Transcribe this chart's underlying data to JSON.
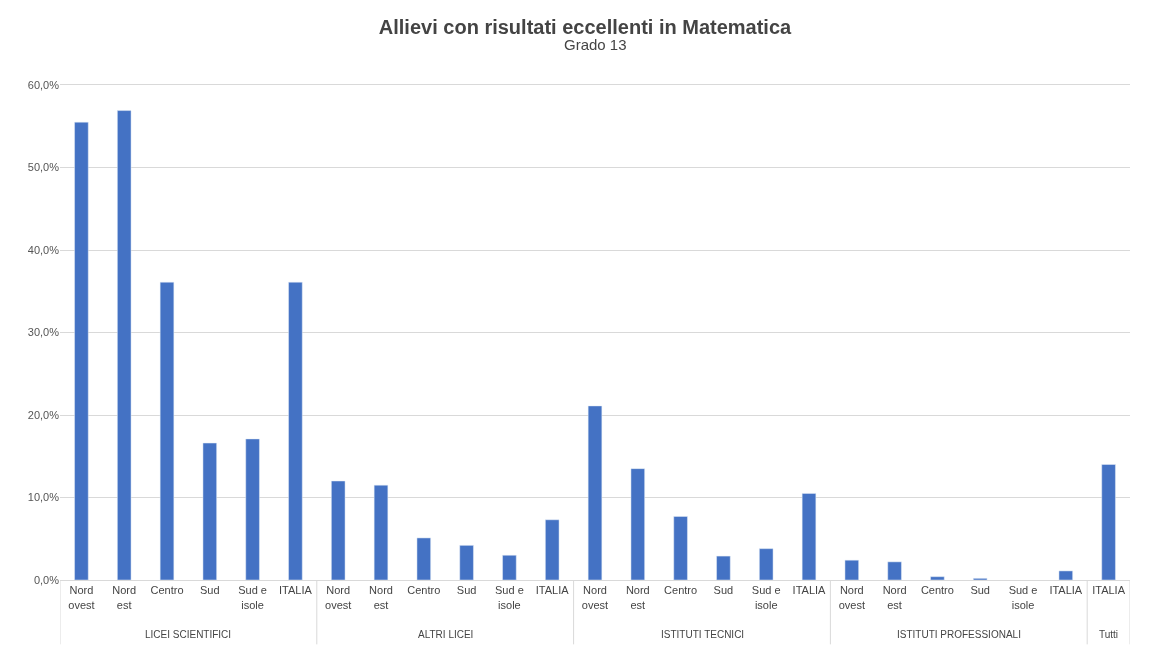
{
  "chart_data": {
    "type": "bar",
    "title": "Allievi con risultati eccellenti in Matematica",
    "subtitle": "Grado 13",
    "categories": [
      "Nord ovest",
      "Nord est",
      "Centro",
      "Sud",
      "Sud e isole",
      "ITALIA",
      "Nord ovest",
      "Nord est",
      "Centro",
      "Sud",
      "Sud e isole",
      "ITALIA",
      "Nord ovest",
      "Nord est",
      "Centro",
      "Sud",
      "Sud e isole",
      "ITALIA",
      "Nord ovest",
      "Nord est",
      "Centro",
      "Sud",
      "Sud e isole",
      "ITALIA",
      "ITALIA"
    ],
    "values": [
      55.5,
      56.9,
      36.1,
      16.6,
      17.1,
      36.1,
      12.0,
      11.5,
      5.1,
      4.2,
      3.0,
      7.3,
      21.1,
      13.5,
      7.7,
      2.9,
      3.8,
      10.5,
      2.4,
      2.2,
      0.4,
      0.2,
      null,
      1.1,
      14.0
    ],
    "color": "#4472c4",
    "annotations": [
      "LICEI SCIENTIFICI",
      "ALTRI LICEI",
      "ISTITUTI TECNICI",
      "ISTITUTI PROFESSIONALI",
      "Tutti"
    ],
    "ylim": [
      0,
      60
    ],
    "yticks": [
      {
        "value": 0,
        "label": "0,0%"
      },
      {
        "value": 10,
        "label": "10,0%"
      },
      {
        "value": 20,
        "label": "20,0%"
      },
      {
        "value": 30,
        "label": "30,0%"
      },
      {
        "value": 40,
        "label": "40,0%"
      },
      {
        "value": 50,
        "label": "50,0%"
      },
      {
        "value": 60,
        "label": "60,0%"
      }
    ],
    "grid": "y",
    "legend": false
  }
}
